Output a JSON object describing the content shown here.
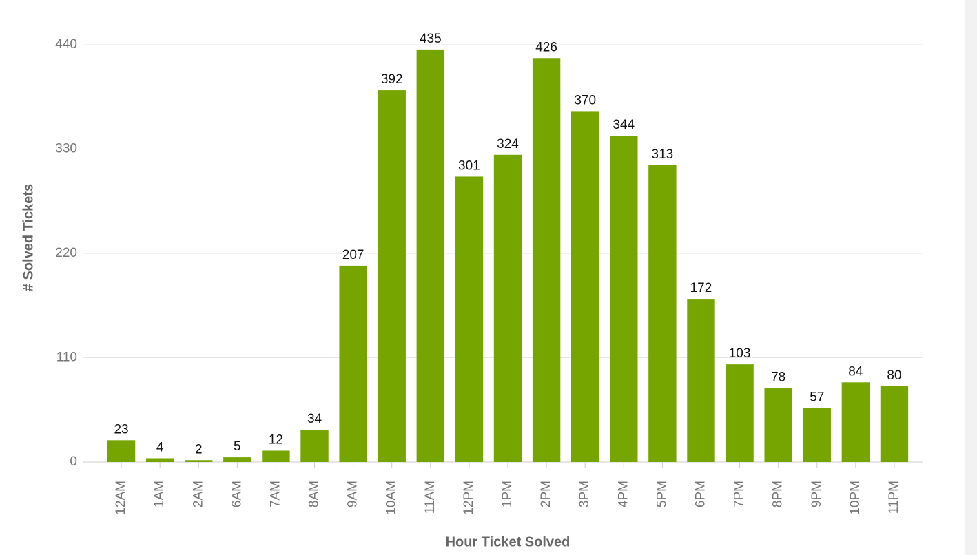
{
  "chart_data": {
    "type": "bar",
    "x_label": "Hour Ticket Solved",
    "y_label": "# Solved Tickets",
    "categories": [
      "12AM",
      "1AM",
      "2AM",
      "6AM",
      "7AM",
      "8AM",
      "9AM",
      "10AM",
      "11AM",
      "12PM",
      "1PM",
      "2PM",
      "3PM",
      "4PM",
      "5PM",
      "6PM",
      "7PM",
      "8PM",
      "9PM",
      "10PM",
      "11PM"
    ],
    "values": [
      23,
      4,
      2,
      5,
      12,
      34,
      207,
      392,
      435,
      301,
      324,
      426,
      370,
      344,
      313,
      172,
      103,
      78,
      57,
      84,
      80
    ],
    "color": "#76a500",
    "ylim": [
      0,
      440
    ],
    "yticks": [
      0,
      110,
      220,
      330,
      440
    ],
    "grid": true
  }
}
